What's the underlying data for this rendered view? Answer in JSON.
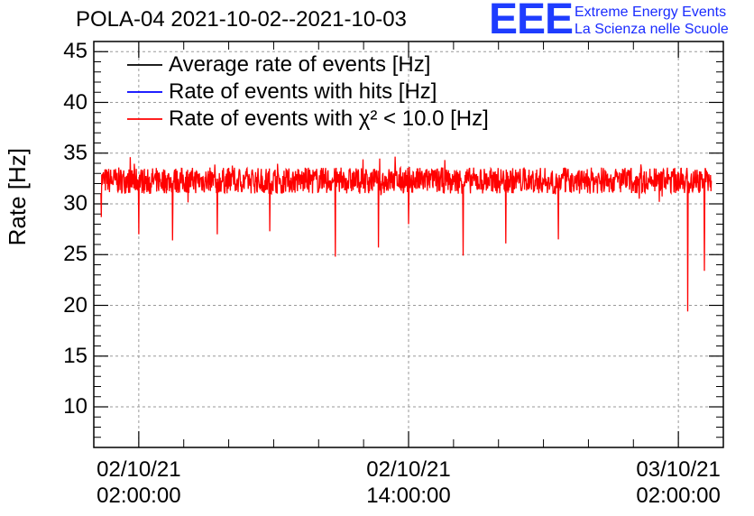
{
  "title": "POLA-04 2021-10-02--2021-10-03",
  "logo": {
    "letters": "EEE",
    "line1": "Extreme Energy Events",
    "line2": "La Scienza nelle Scuole"
  },
  "chart_data": {
    "type": "line",
    "ylabel": "Rate [Hz]",
    "ylim": [
      6,
      46
    ],
    "yticks": [
      "10",
      "15",
      "20",
      "25",
      "30",
      "35",
      "40",
      "45"
    ],
    "xtick_labels": [
      {
        "date": "02/10/21",
        "time": "02:00:00"
      },
      {
        "date": "02/10/21",
        "time": "14:00:00"
      },
      {
        "date": "03/10/21",
        "time": "02:00:00"
      }
    ],
    "x_range_hours": [
      "2021-10-02 00:00",
      "2021-10-03 04:00"
    ],
    "grid": true,
    "legend_position": "top-left",
    "series": [
      {
        "name": "Average rate of events [Hz]",
        "color": "#000000"
      },
      {
        "name": "Rate of events with hits [Hz]",
        "color": "#0000ff"
      },
      {
        "name": "Rate of events with χ² < 10.0 [Hz]",
        "color": "#ff0000",
        "x_start": "2021-10-02 00:19",
        "x_end": "2021-10-03 03:28",
        "baseline": 32.3,
        "noise_range": [
          31,
          34
        ],
        "dips": [
          {
            "x": "2021-10-02 00:20",
            "y": 28.7
          },
          {
            "x": "2021-10-02 02:00",
            "y": 27.0
          },
          {
            "x": "2021-10-02 03:30",
            "y": 26.4
          },
          {
            "x": "2021-10-02 05:30",
            "y": 27.0
          },
          {
            "x": "2021-10-02 07:50",
            "y": 27.3
          },
          {
            "x": "2021-10-02 10:45",
            "y": 24.8
          },
          {
            "x": "2021-10-02 12:40",
            "y": 25.7
          },
          {
            "x": "2021-10-02 14:00",
            "y": 28.0
          },
          {
            "x": "2021-10-02 16:25",
            "y": 24.9
          },
          {
            "x": "2021-10-02 18:20",
            "y": 26.1
          },
          {
            "x": "2021-10-02 20:40",
            "y": 26.5
          },
          {
            "x": "2021-10-03 02:25",
            "y": 19.4
          },
          {
            "x": "2021-10-03 03:10",
            "y": 23.4
          }
        ]
      }
    ]
  }
}
